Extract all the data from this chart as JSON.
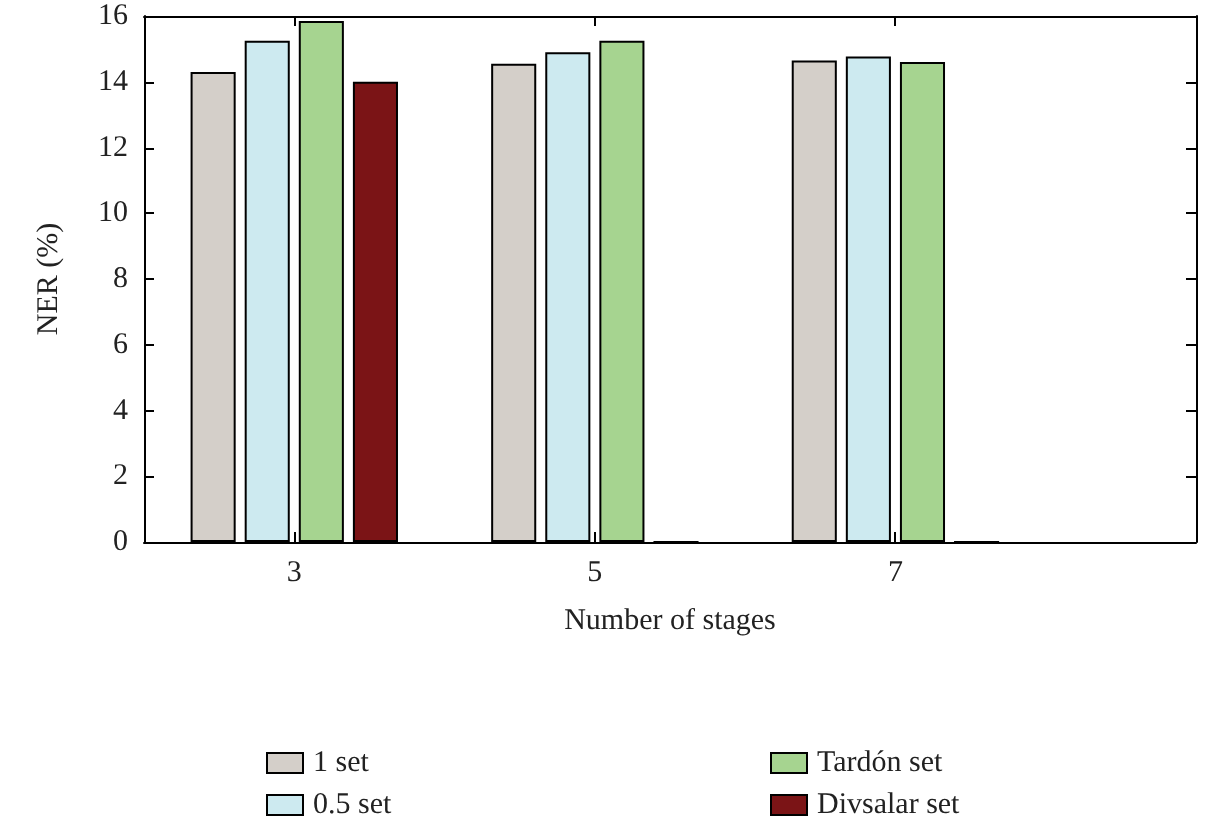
{
  "chart_data": {
    "type": "bar",
    "xlabel": "Number of stages",
    "ylabel": "NER (%)",
    "x": [
      3,
      5,
      7
    ],
    "xlim": [
      2,
      9
    ],
    "xticks": [
      3,
      5,
      7
    ],
    "ylim": [
      0,
      16
    ],
    "yticks": [
      0,
      2,
      4,
      6,
      8,
      10,
      12,
      14,
      16
    ],
    "series": [
      {
        "name": "1 set",
        "color": "#d4cfc9",
        "values": [
          14.3,
          14.55,
          14.65
        ]
      },
      {
        "name": "0.5 set",
        "color": "#cdeaf0",
        "values": [
          15.25,
          14.9,
          14.77
        ]
      },
      {
        "name": "Tardón set",
        "color": "#a6d490",
        "values": [
          15.85,
          15.25,
          14.6
        ]
      },
      {
        "name": "Divsalar set",
        "color": "#7b1416",
        "values": [
          14.0,
          0,
          0
        ]
      }
    ],
    "grid": false,
    "legend": "bottom"
  }
}
